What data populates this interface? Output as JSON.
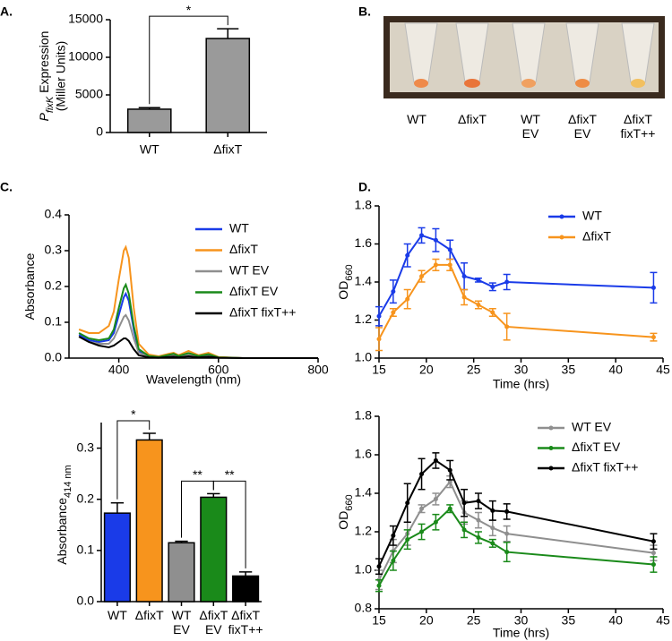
{
  "chart_data": [
    {
      "type": "bar",
      "panel": "A.",
      "ylabel": {
        "text": "P",
        "subscript": "fixK",
        "suffix": " Expression",
        "line2": "(Miller Units)"
      },
      "categories": [
        "WT",
        "ΔfixT"
      ],
      "values": [
        3100,
        12500
      ],
      "errors": [
        200,
        1300
      ],
      "colors": [
        "#9a9a9a",
        "#9a9a9a"
      ],
      "ylim": [
        0,
        15000
      ],
      "yticks": [
        0,
        5000,
        10000,
        15000
      ],
      "significance": [
        "*"
      ]
    },
    {
      "type": "line",
      "panel": "C.",
      "xlabel": "Wavelength (nm)",
      "ylabel": {
        "text": "Absorbance"
      },
      "x": [
        320,
        340,
        360,
        380,
        390,
        400,
        410,
        414,
        420,
        430,
        440,
        460,
        480,
        500,
        510,
        520,
        540,
        560,
        580,
        600,
        650,
        700,
        800
      ],
      "series": [
        {
          "name": "WT",
          "color": "#1a3be8",
          "values": [
            0.065,
            0.05,
            0.045,
            0.05,
            0.07,
            0.12,
            0.17,
            0.18,
            0.16,
            0.08,
            0.02,
            0.005,
            0.002,
            0.008,
            0.01,
            0.005,
            0.012,
            0.005,
            0.01,
            0.002,
            0,
            0,
            0
          ]
        },
        {
          "name": "ΔfixT",
          "color": "#f7941d",
          "values": [
            0.08,
            0.07,
            0.07,
            0.09,
            0.13,
            0.22,
            0.3,
            0.31,
            0.28,
            0.14,
            0.04,
            0.01,
            0.005,
            0.012,
            0.015,
            0.008,
            0.02,
            0.008,
            0.015,
            0.003,
            0,
            0,
            0
          ]
        },
        {
          "name": "WT EV",
          "color": "#8f8f8f",
          "values": [
            0.06,
            0.045,
            0.04,
            0.04,
            0.055,
            0.085,
            0.115,
            0.12,
            0.105,
            0.055,
            0.015,
            0.004,
            0.002,
            0.006,
            0.008,
            0.004,
            0.009,
            0.004,
            0.007,
            0.001,
            0,
            0,
            0
          ]
        },
        {
          "name": "ΔfixT EV",
          "color": "#1a8a1a",
          "values": [
            0.07,
            0.055,
            0.05,
            0.055,
            0.08,
            0.14,
            0.195,
            0.205,
            0.18,
            0.09,
            0.025,
            0.006,
            0.003,
            0.009,
            0.012,
            0.006,
            0.014,
            0.006,
            0.011,
            0.002,
            0,
            0,
            0
          ]
        },
        {
          "name": "ΔfixT fixT++",
          "color": "#000000",
          "values": [
            0.06,
            0.045,
            0.035,
            0.03,
            0.035,
            0.045,
            0.055,
            0.055,
            0.048,
            0.025,
            0.008,
            0.002,
            0.001,
            0.003,
            0.004,
            0.002,
            0.005,
            0.002,
            0.004,
            0.001,
            0,
            0,
            0
          ]
        }
      ],
      "xlim": [
        300,
        800
      ],
      "xticks": [
        400,
        600,
        800
      ],
      "ylim": [
        0,
        0.4
      ],
      "yticks": [
        {
          "value": 0,
          "label": "0.0"
        },
        0.1,
        0.2,
        0.3,
        0.4
      ],
      "markers": false
    },
    {
      "type": "bar",
      "ylabel": {
        "text": "Absorbance",
        "subscript": "414 nm"
      },
      "categories": [
        [
          "WT"
        ],
        [
          "ΔfixT"
        ],
        [
          "WT",
          "EV"
        ],
        [
          "ΔfixT",
          "EV"
        ],
        [
          "ΔfixT",
          "fixT++"
        ]
      ],
      "values": [
        0.173,
        0.316,
        0.115,
        0.204,
        0.05
      ],
      "errors": [
        0.02,
        0.013,
        0.003,
        0.007,
        0.008
      ],
      "colors": [
        "#1a3be8",
        "#f7941d",
        "#8f8f8f",
        "#1a8a1a",
        "#000000"
      ],
      "ylim": [
        0,
        0.35
      ],
      "yticks": [
        {
          "value": 0,
          "label": "0.0"
        },
        0.1,
        0.2,
        0.3
      ],
      "significance": [
        "*",
        "**",
        "**"
      ]
    },
    {
      "type": "line",
      "panel": "D.",
      "xlabel": "Time (hrs)",
      "ylabel": {
        "text": "OD",
        "subscript": "660"
      },
      "x": [
        15,
        16.5,
        18,
        19.5,
        21,
        22.5,
        24,
        25.5,
        27,
        28.5,
        44
      ],
      "series": [
        {
          "name": "WT",
          "color": "#1a3be8",
          "values": [
            1.22,
            1.35,
            1.54,
            1.645,
            1.62,
            1.57,
            1.43,
            1.41,
            1.375,
            1.4,
            1.37
          ],
          "errors": [
            0.05,
            0.06,
            0.06,
            0.04,
            0.06,
            0.05,
            0.07,
            0.01,
            0.02,
            0.04,
            0.08
          ]
        },
        {
          "name": "ΔfixT",
          "color": "#f7941d",
          "values": [
            1.1,
            1.24,
            1.31,
            1.43,
            1.49,
            1.49,
            1.32,
            1.28,
            1.24,
            1.165,
            1.11
          ],
          "errors": [
            0.06,
            0.02,
            0.05,
            0.03,
            0.03,
            0.03,
            0.04,
            0.02,
            0.02,
            0.07,
            0.02
          ]
        }
      ],
      "xlim": [
        15,
        45
      ],
      "xticks": [
        15,
        20,
        25,
        30,
        35,
        40,
        45
      ],
      "ylim": [
        1,
        1.8
      ],
      "yticks": [
        {
          "value": 1,
          "label": "1.0"
        },
        1.2,
        1.4,
        1.6,
        {
          "value": 1.8,
          "label": "1.8"
        }
      ],
      "markers": true
    },
    {
      "type": "line",
      "xlabel": "Time (hrs)",
      "ylabel": {
        "text": "OD",
        "subscript": "660"
      },
      "x": [
        15,
        16.5,
        18,
        19.5,
        21,
        22.5,
        24,
        25.5,
        27,
        28.5,
        44
      ],
      "series": [
        {
          "name": "WT EV",
          "color": "#8f8f8f",
          "values": [
            0.95,
            1.1,
            1.19,
            1.32,
            1.37,
            1.46,
            1.3,
            1.26,
            1.22,
            1.19,
            1.09
          ],
          "errors": [
            0.05,
            0.06,
            0.06,
            0.02,
            0.03,
            0.03,
            0.06,
            0.04,
            0.04,
            0.04,
            0.04
          ]
        },
        {
          "name": "ΔfixT EV",
          "color": "#1a8a1a",
          "values": [
            0.92,
            1.05,
            1.16,
            1.2,
            1.25,
            1.32,
            1.21,
            1.17,
            1.14,
            1.095,
            1.03
          ],
          "errors": [
            0.03,
            0.05,
            0.05,
            0.04,
            0.04,
            0.02,
            0.04,
            0.03,
            0.02,
            0.05,
            0.04
          ]
        },
        {
          "name": "ΔfixT fixT++",
          "color": "#000000",
          "values": [
            1.02,
            1.18,
            1.35,
            1.5,
            1.57,
            1.52,
            1.35,
            1.36,
            1.31,
            1.305,
            1.15
          ],
          "errors": [
            0.04,
            0.05,
            0.1,
            0.08,
            0.04,
            0.05,
            0.07,
            0.04,
            0.05,
            0.04,
            0.04
          ]
        }
      ],
      "xlim": [
        15,
        45
      ],
      "xticks": [
        15,
        20,
        25,
        30,
        35,
        40,
        45
      ],
      "ylim": [
        0.8,
        1.8
      ],
      "yticks": [
        0.8,
        {
          "value": 1,
          "label": "1.0"
        },
        1.2,
        1.4,
        1.6,
        {
          "value": 1.8,
          "label": "1.8"
        }
      ],
      "markers": true
    }
  ],
  "photo": {
    "panel": "B.",
    "labels": [
      [
        "WT"
      ],
      [
        "ΔfixT"
      ],
      [
        "WT",
        "EV"
      ],
      [
        "ΔfixT",
        "EV"
      ],
      [
        "ΔfixT",
        "fixT++"
      ]
    ]
  }
}
